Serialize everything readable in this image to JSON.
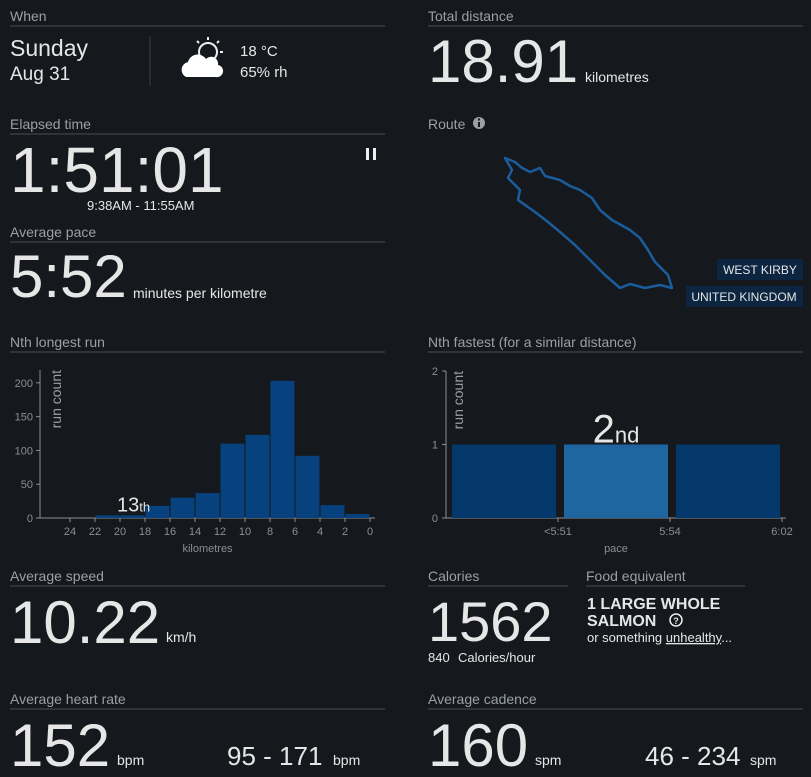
{
  "when": {
    "label": "When",
    "day": "Sunday",
    "date": "Aug 31",
    "temperature": "18 °C",
    "humidity": "65% rh"
  },
  "total_distance": {
    "label": "Total distance",
    "value": "18.91",
    "unit": "kilometres"
  },
  "elapsed_time": {
    "label": "Elapsed time",
    "value": "1:51:01",
    "range": "9:38AM - 11:55AM"
  },
  "average_pace": {
    "label": "Average pace",
    "value": "5:52",
    "unit": "minutes per kilometre"
  },
  "route": {
    "label": "Route",
    "places": [
      "WEST KIRBY",
      "UNITED KINGDOM"
    ]
  },
  "average_speed": {
    "label": "Average speed",
    "value": "10.22",
    "unit": "km/h"
  },
  "calories": {
    "label": "Calories",
    "value": "1562",
    "rate": "840",
    "rate_unit": "Calories/hour"
  },
  "food": {
    "label": "Food equivalent",
    "line1": "1 LARGE WHOLE",
    "line2": "SALMON",
    "note": "or something",
    "link": "unhealthy",
    "note_end": "..."
  },
  "heart_rate": {
    "label": "Average heart rate",
    "value": "152",
    "unit": "bpm",
    "range": "95 - 171",
    "range_unit": "bpm"
  },
  "cadence": {
    "label": "Average cadence",
    "value": "160",
    "unit": "spm",
    "range": "46 - 234",
    "range_unit": "spm"
  },
  "chart_data": [
    {
      "type": "histogram",
      "title": "Nth longest run",
      "bins": [
        22,
        20,
        18,
        16,
        14,
        12,
        10,
        8,
        6,
        4,
        2,
        0
      ],
      "values": [
        4,
        4,
        18,
        30,
        37,
        110,
        123,
        203,
        92,
        19,
        6
      ],
      "color": "#07427e",
      "xlim": [
        26.4,
        -0.4
      ],
      "xticks": [
        24,
        22,
        20,
        18,
        16,
        14,
        12,
        10,
        8,
        6,
        4,
        2,
        0
      ],
      "ylim": [
        0,
        219
      ],
      "yticks": [
        0,
        50,
        100,
        150,
        200
      ],
      "x_label": "kilometres",
      "y_label": "run count",
      "annotation": {
        "text": "13",
        "suffix": "th"
      }
    },
    {
      "type": "bar",
      "title": "Nth fastest (for a similar distance)",
      "categories": [
        "<5:51",
        "5:54",
        "6:02"
      ],
      "values": [
        1,
        1,
        1
      ],
      "colors": [
        "#06396b",
        "#1f65a0",
        "#06396b"
      ],
      "ylim": [
        0,
        2
      ],
      "yticks": [
        0,
        1,
        2
      ],
      "x_label": "pace",
      "y_label": "run count",
      "annotation": {
        "text": "2",
        "suffix": "nd"
      }
    }
  ]
}
